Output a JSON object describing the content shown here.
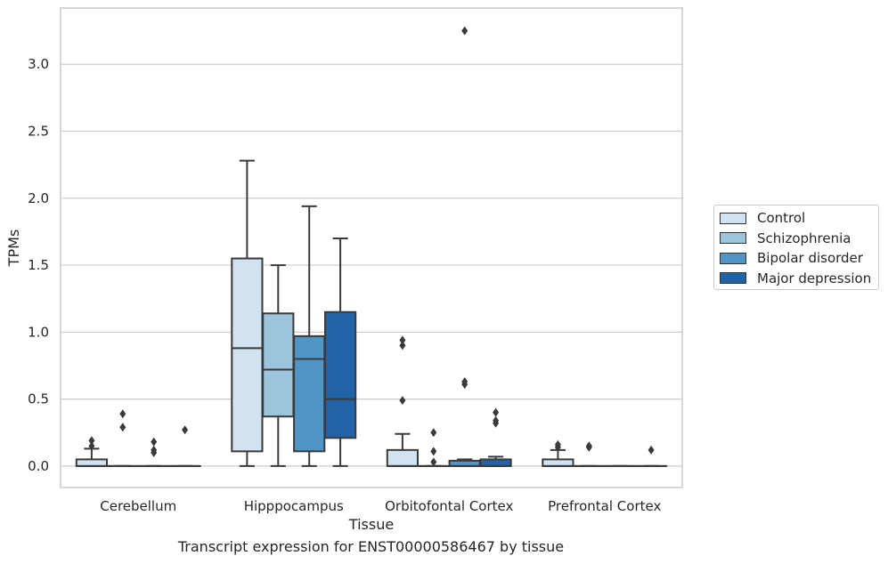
{
  "chart_data": {
    "type": "boxplot",
    "caption": "Transcript expression for ENST00000586467 by tissue",
    "xlabel": "Tissue",
    "ylabel": "TPMs",
    "ylim": [
      -0.16,
      3.42
    ],
    "yticks": [
      0.0,
      0.5,
      1.0,
      1.5,
      2.0,
      2.5,
      3.0
    ],
    "ytick_labels": [
      "0.0",
      "0.5",
      "1.0",
      "1.5",
      "2.0",
      "2.5",
      "3.0"
    ],
    "grid": "horizontal",
    "legend_position": "right",
    "categories": [
      "Cerebellum",
      "Hipppocampus",
      "Orbitofontal Cortex",
      "Prefrontal Cortex"
    ],
    "series": [
      {
        "name": "Control",
        "color": "#d1e2f1",
        "boxes": [
          {
            "whislo": 0.0,
            "q1": 0.0,
            "med": 0.0,
            "q3": 0.05,
            "whishi": 0.13,
            "fliers": [
              0.15,
              0.19
            ]
          },
          {
            "whislo": 0.0,
            "q1": 0.11,
            "med": 0.88,
            "q3": 1.55,
            "whishi": 2.28,
            "fliers": []
          },
          {
            "whislo": 0.0,
            "q1": 0.0,
            "med": 0.0,
            "q3": 0.12,
            "whishi": 0.24,
            "fliers": [
              0.49,
              0.9,
              0.94
            ]
          },
          {
            "whislo": 0.0,
            "q1": 0.0,
            "med": 0.0,
            "q3": 0.05,
            "whishi": 0.12,
            "fliers": [
              0.14,
              0.16
            ]
          }
        ]
      },
      {
        "name": "Schizophrenia",
        "color": "#9cc4dc",
        "boxes": [
          {
            "whislo": 0.0,
            "q1": 0.0,
            "med": 0.0,
            "q3": 0.0,
            "whishi": 0.0,
            "fliers": [
              0.29,
              0.39
            ]
          },
          {
            "whislo": 0.0,
            "q1": 0.37,
            "med": 0.72,
            "q3": 1.14,
            "whishi": 1.5,
            "fliers": []
          },
          {
            "whislo": 0.0,
            "q1": 0.0,
            "med": 0.0,
            "q3": 0.0,
            "whishi": 0.0,
            "fliers": [
              0.03,
              0.11,
              0.25
            ]
          },
          {
            "whislo": 0.0,
            "q1": 0.0,
            "med": 0.0,
            "q3": 0.0,
            "whishi": 0.0,
            "fliers": [
              0.14,
              0.15
            ]
          }
        ]
      },
      {
        "name": "Bipolar disorder",
        "color": "#5195c7",
        "boxes": [
          {
            "whislo": 0.0,
            "q1": 0.0,
            "med": 0.0,
            "q3": 0.0,
            "whishi": 0.0,
            "fliers": [
              0.1,
              0.12,
              0.18
            ]
          },
          {
            "whislo": 0.0,
            "q1": 0.11,
            "med": 0.8,
            "q3": 0.97,
            "whishi": 1.94,
            "fliers": []
          },
          {
            "whislo": 0.0,
            "q1": 0.0,
            "med": 0.0,
            "q3": 0.04,
            "whishi": 0.05,
            "fliers": [
              0.61,
              0.63,
              3.25
            ]
          },
          {
            "whislo": 0.0,
            "q1": 0.0,
            "med": 0.0,
            "q3": 0.0,
            "whishi": 0.0,
            "fliers": []
          }
        ]
      },
      {
        "name": "Major depression",
        "color": "#2163a6",
        "boxes": [
          {
            "whislo": 0.0,
            "q1": 0.0,
            "med": 0.0,
            "q3": 0.0,
            "whishi": 0.0,
            "fliers": [
              0.27
            ]
          },
          {
            "whislo": 0.0,
            "q1": 0.21,
            "med": 0.5,
            "q3": 1.15,
            "whishi": 1.7,
            "fliers": []
          },
          {
            "whislo": 0.0,
            "q1": 0.0,
            "med": 0.0,
            "q3": 0.05,
            "whishi": 0.07,
            "fliers": [
              0.32,
              0.34,
              0.4
            ]
          },
          {
            "whislo": 0.0,
            "q1": 0.0,
            "med": 0.0,
            "q3": 0.0,
            "whishi": 0.0,
            "fliers": [
              0.12
            ]
          }
        ]
      }
    ]
  }
}
